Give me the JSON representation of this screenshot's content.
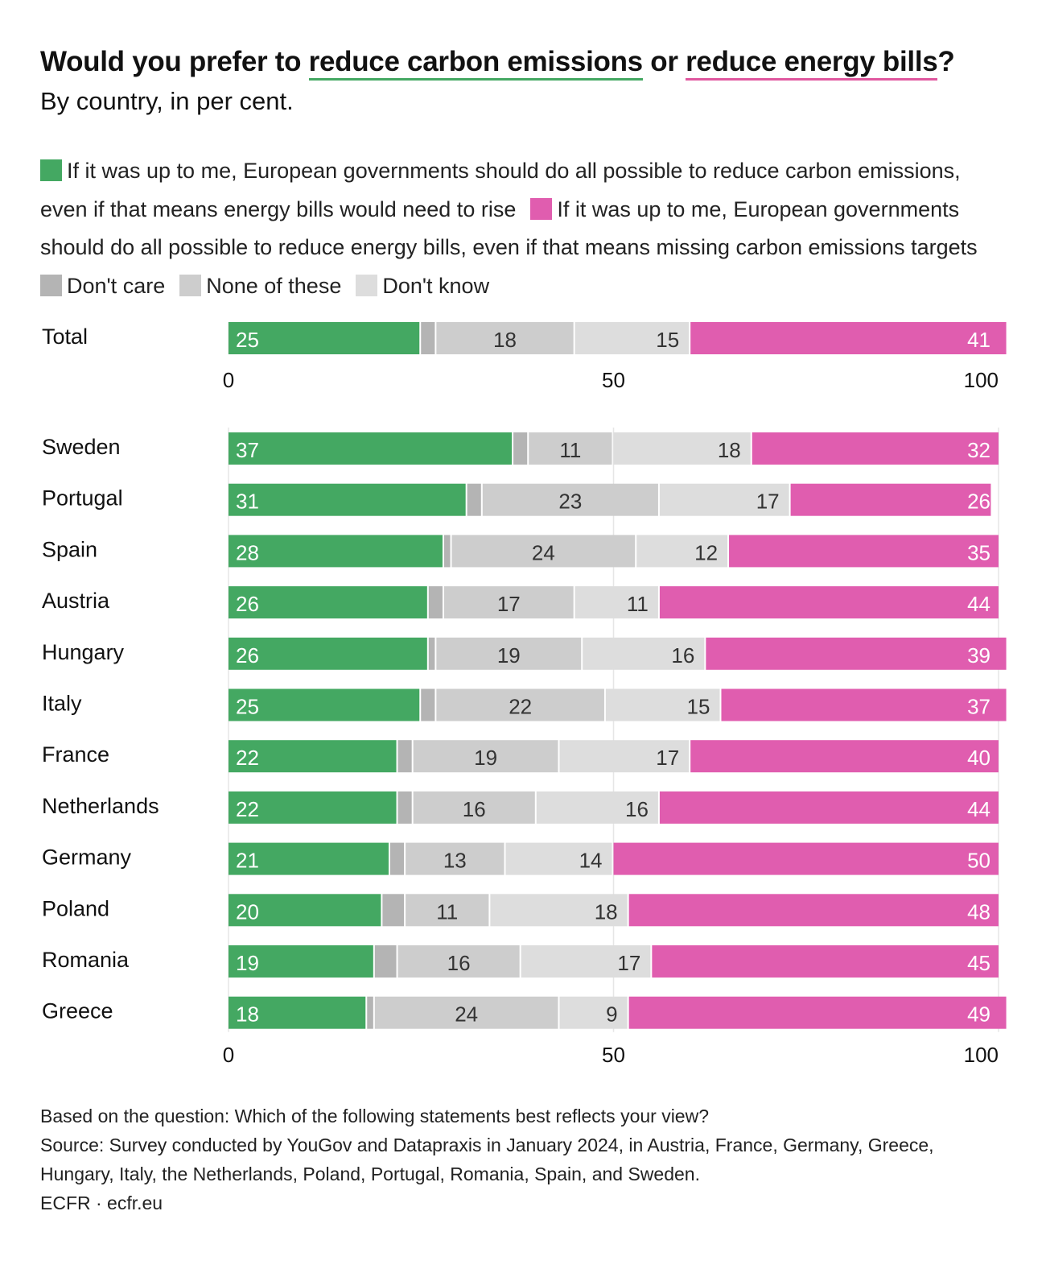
{
  "header": {
    "title_prefix": "Would you prefer to ",
    "title_green": "reduce carbon emissions",
    "title_mid": " or ",
    "title_pink": "reduce energy bills",
    "title_suffix": "?",
    "subtitle": "By country, in per cent."
  },
  "legend": {
    "carbon": "If it was up to me, European governments should do all possible to reduce carbon emissions, even if that means energy bills would need to rise",
    "bills": "If it was up to me, European governments should do all possible to reduce energy bills, even if that means missing carbon emissions targets",
    "dont_care": "Don't care",
    "none": "None of these",
    "dont_know": "Don't know"
  },
  "colors": {
    "carbon": "#44a862",
    "dont_care": "#b4b4b4",
    "none": "#cdcdcd",
    "dont_know": "#dddddd",
    "bills": "#e05daf",
    "title_green_underline": "#44a862",
    "title_pink_underline": "#e0579f"
  },
  "chart_data": {
    "type": "bar",
    "orientation": "horizontal",
    "stacked": true,
    "title": "Would you prefer to reduce carbon emissions or reduce energy bills?",
    "subtitle": "By country, in per cent.",
    "xlim": [
      0,
      100
    ],
    "xticks": [
      "0",
      "50",
      "100"
    ],
    "grid": true,
    "series_order": [
      "carbon",
      "dont_care",
      "none",
      "dont_know",
      "bills"
    ],
    "total": {
      "label": "Total",
      "carbon": 25,
      "dont_care": 2,
      "none": 18,
      "dont_know": 15,
      "bills": 41
    },
    "countries": [
      {
        "label": "Sweden",
        "carbon": 37,
        "dont_care": 2,
        "none": 11,
        "dont_know": 18,
        "bills": 32
      },
      {
        "label": "Portugal",
        "carbon": 31,
        "dont_care": 2,
        "none": 23,
        "dont_know": 17,
        "bills": 26
      },
      {
        "label": "Spain",
        "carbon": 28,
        "dont_care": 1,
        "none": 24,
        "dont_know": 12,
        "bills": 35
      },
      {
        "label": "Austria",
        "carbon": 26,
        "dont_care": 2,
        "none": 17,
        "dont_know": 11,
        "bills": 44
      },
      {
        "label": "Hungary",
        "carbon": 26,
        "dont_care": 1,
        "none": 19,
        "dont_know": 16,
        "bills": 39
      },
      {
        "label": "Italy",
        "carbon": 25,
        "dont_care": 2,
        "none": 22,
        "dont_know": 15,
        "bills": 37
      },
      {
        "label": "France",
        "carbon": 22,
        "dont_care": 2,
        "none": 19,
        "dont_know": 17,
        "bills": 40
      },
      {
        "label": "Netherlands",
        "carbon": 22,
        "dont_care": 2,
        "none": 16,
        "dont_know": 16,
        "bills": 44
      },
      {
        "label": "Germany",
        "carbon": 21,
        "dont_care": 2,
        "none": 13,
        "dont_know": 14,
        "bills": 50
      },
      {
        "label": "Poland",
        "carbon": 20,
        "dont_care": 3,
        "none": 11,
        "dont_know": 18,
        "bills": 48
      },
      {
        "label": "Romania",
        "carbon": 19,
        "dont_care": 3,
        "none": 16,
        "dont_know": 17,
        "bills": 45
      },
      {
        "label": "Greece",
        "carbon": 18,
        "dont_care": 1,
        "none": 24,
        "dont_know": 9,
        "bills": 49
      }
    ]
  },
  "footer": {
    "question": "Based on the question: Which of the following statements best reflects your view?",
    "source": "Source: Survey conducted by YouGov and Datapraxis in January 2024, in Austria, France, Germany, Greece, Hungary, Italy, the Netherlands, Poland, Portugal, Romania, Spain, and Sweden.",
    "credit": "ECFR · ecfr.eu"
  }
}
